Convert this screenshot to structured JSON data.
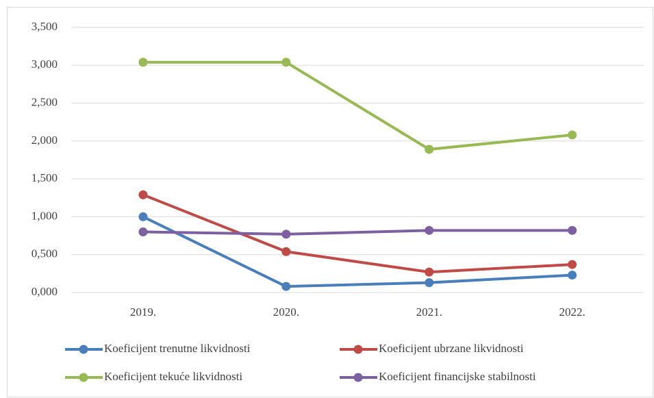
{
  "chart_data": {
    "type": "line",
    "categories": [
      "2019.",
      "2020.",
      "2021.",
      "2022."
    ],
    "series": [
      {
        "name": "Koeficijent trenutne likvidnosti",
        "color": "#4a7ebb",
        "values": [
          1.0,
          0.08,
          0.13,
          0.23
        ]
      },
      {
        "name": "Koeficijent ubrzane likvidnosti",
        "color": "#be4b48",
        "values": [
          1.29,
          0.54,
          0.27,
          0.37
        ]
      },
      {
        "name": "Koeficijent tekuće likvidnosti",
        "color": "#98b954",
        "values": [
          3.04,
          3.04,
          1.89,
          2.08
        ]
      },
      {
        "name": "Koeficijent financijske stabilnosti",
        "color": "#7d60a0",
        "values": [
          0.8,
          0.77,
          0.82,
          0.82
        ]
      }
    ],
    "ylim": [
      0,
      3.5
    ],
    "yticks": [
      {
        "value": 0,
        "label": "0,000"
      },
      {
        "value": 0.5,
        "label": "0,500"
      },
      {
        "value": 1,
        "label": "1,000"
      },
      {
        "value": 1.5,
        "label": "1,500"
      },
      {
        "value": 2,
        "label": "2,000"
      },
      {
        "value": 2.5,
        "label": "2,500"
      },
      {
        "value": 3,
        "label": "3,000"
      },
      {
        "value": 3.5,
        "label": "3,500"
      }
    ],
    "grid": true
  }
}
